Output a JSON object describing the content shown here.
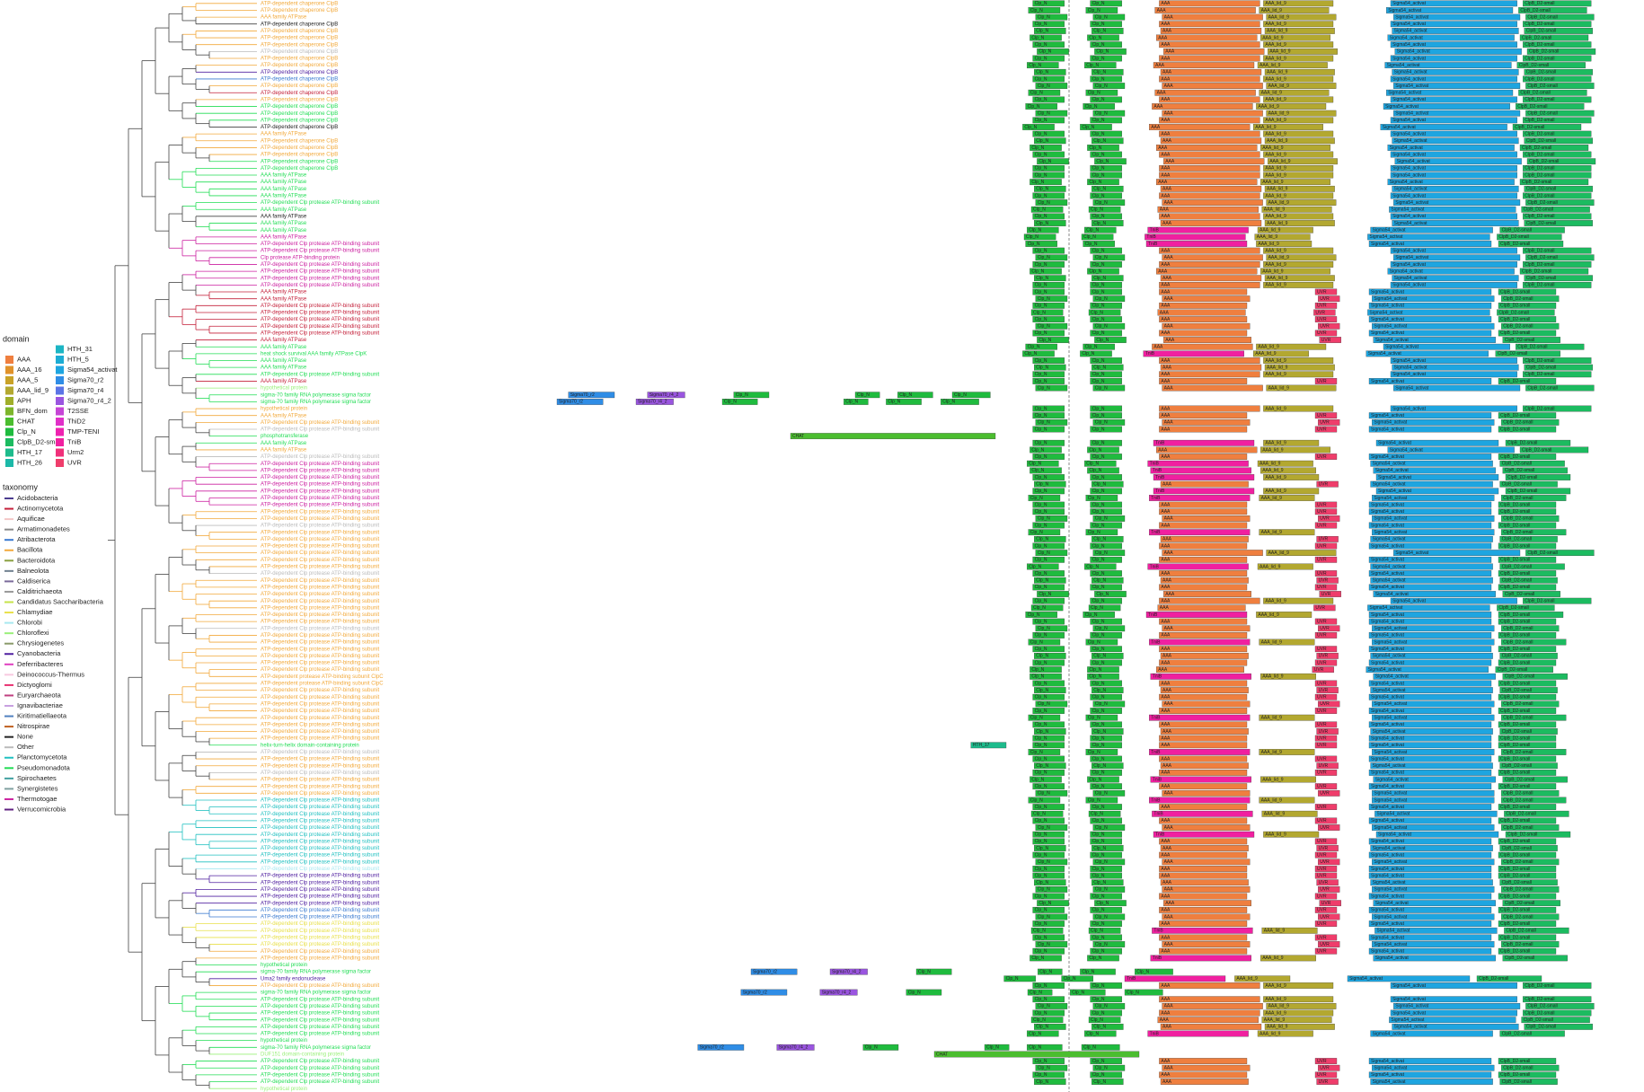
{
  "domain_legend": {
    "title": "domain",
    "items": [
      {
        "name": "AAA",
        "color": "#ef7f3f"
      },
      {
        "name": "AAA_16",
        "color": "#e0922a"
      },
      {
        "name": "AAA_5",
        "color": "#c9a227"
      },
      {
        "name": "AAA_lid_9",
        "color": "#b3a830"
      },
      {
        "name": "APH",
        "color": "#a0ae2a"
      },
      {
        "name": "BFN_dom",
        "color": "#7db52b"
      },
      {
        "name": "CHAT",
        "color": "#4bbd2f"
      },
      {
        "name": "Clp_N",
        "color": "#1fbb3e"
      },
      {
        "name": "ClpB_D2-small",
        "color": "#1cbb60"
      },
      {
        "name": "HTH_17",
        "color": "#1dbb8c"
      },
      {
        "name": "HTH_26",
        "color": "#1cb9a8"
      },
      {
        "name": "HTH_31",
        "color": "#1cb5c4"
      },
      {
        "name": "HTH_5",
        "color": "#1cacd4"
      },
      {
        "name": "Sigma54_activat",
        "color": "#1ea5e0"
      },
      {
        "name": "Sigma70_r2",
        "color": "#2f8de6"
      },
      {
        "name": "Sigma70_r4",
        "color": "#5b74e6"
      },
      {
        "name": "Sigma70_r4_2",
        "color": "#9a55e0"
      },
      {
        "name": "T2SSE",
        "color": "#c645d6"
      },
      {
        "name": "ThiD2",
        "color": "#e030c8"
      },
      {
        "name": "TMP-TENI",
        "color": "#ee22b0"
      },
      {
        "name": "TniB",
        "color": "#f020a0"
      },
      {
        "name": "Urm2",
        "color": "#f0307a"
      },
      {
        "name": "UVR",
        "color": "#ef3d6b"
      }
    ]
  },
  "taxonomy_legend": {
    "title": "taxonomy",
    "items": [
      {
        "name": "Acidobacteria",
        "color": "#4b3b8f"
      },
      {
        "name": "Actinomycetota",
        "color": "#c4203a"
      },
      {
        "name": "Aquificae",
        "color": "#f4c6c6"
      },
      {
        "name": "Armatimonadetes",
        "color": "#8a8a8a"
      },
      {
        "name": "Atribacterota",
        "color": "#3a7ad0"
      },
      {
        "name": "Bacillota",
        "color": "#f2a93b"
      },
      {
        "name": "Bacteroidota",
        "color": "#8aa040"
      },
      {
        "name": "Balneolota",
        "color": "#708090"
      },
      {
        "name": "Caldiserica",
        "color": "#7a6a9a"
      },
      {
        "name": "Calditrichaeota",
        "color": "#999999"
      },
      {
        "name": "Candidatus Saccharibacteria",
        "color": "#c6e34a"
      },
      {
        "name": "Chlamydiae",
        "color": "#e8e04a"
      },
      {
        "name": "Chlorobi",
        "color": "#a8e8f0"
      },
      {
        "name": "Chloroflexi",
        "color": "#9af07a"
      },
      {
        "name": "Chrysiogenetes",
        "color": "#8a9a6a"
      },
      {
        "name": "Cyanobacteria",
        "color": "#5020a0"
      },
      {
        "name": "Deferribacteres",
        "color": "#e040c0"
      },
      {
        "name": "Deinococcus-Thermus",
        "color": "#f8c8e0"
      },
      {
        "name": "Dictyoglomi",
        "color": "#e83070"
      },
      {
        "name": "Euryarchaeota",
        "color": "#c04080"
      },
      {
        "name": "Ignavibacteriae",
        "color": "#c8a0e0"
      },
      {
        "name": "Kiritimatiellaeota",
        "color": "#5080c0"
      },
      {
        "name": "Nitrospirae",
        "color": "#c06020"
      },
      {
        "name": "None",
        "color": "#222222"
      },
      {
        "name": "Other",
        "color": "#bbbbbb"
      },
      {
        "name": "Planctomycetota",
        "color": "#20c0c0"
      },
      {
        "name": "Pseudomonadota",
        "color": "#22dd55"
      },
      {
        "name": "Spirochaetes",
        "color": "#40a0a0"
      },
      {
        "name": "Synergistetes",
        "color": "#80a0a0"
      },
      {
        "name": "Thermotogae",
        "color": "#cc20a0"
      },
      {
        "name": "Verrucomicrobia",
        "color": "#602080"
      }
    ]
  },
  "protein_names": [
    "ATP-dependent chaperone ClpB",
    "AAA family ATPase",
    "ATP-dependent Clp protease ATP-binding subunit",
    "Clp protease ATP-binding protein",
    "heat shock survival AAA family ATPase ClpK",
    "hypothetical protein",
    "sigma-70 family RNA polymerase sigma factor",
    "phosphotransferase",
    "ATP-dependent protease ATP-binding subunit ClpC",
    "helix-turn-helix domain-containing protein",
    "Uma2 family endonuclease",
    "DUF151 domain-containing protein"
  ],
  "architectures": [
    [
      [
        7,
        2,
        46
      ],
      [
        7,
        82,
        126
      ],
      [
        0,
        178,
        318
      ],
      [
        3,
        323,
        420
      ],
      [
        13,
        500,
        676
      ],
      [
        8,
        684,
        779
      ]
    ],
    [
      [
        7,
        2,
        46
      ],
      [
        7,
        82,
        126
      ],
      [
        20,
        170,
        310
      ],
      [
        3,
        323,
        400
      ],
      [
        13,
        480,
        650
      ],
      [
        8,
        660,
        750
      ]
    ],
    [
      [
        7,
        2,
        46
      ],
      [
        7,
        82,
        126
      ],
      [
        0,
        178,
        300
      ],
      [
        22,
        395,
        425
      ],
      [
        13,
        470,
        640
      ],
      [
        8,
        650,
        730
      ]
    ],
    [
      [
        14,
        -644,
        -580
      ],
      [
        16,
        -534,
        -482
      ],
      [
        7,
        -414,
        -365
      ],
      [
        7,
        -245,
        -211
      ],
      [
        7,
        -186,
        -137
      ],
      [
        7,
        -110,
        -57
      ]
    ],
    [
      [
        6,
        -335,
        -50
      ]
    ],
    [],
    [
      [
        9,
        -84,
        -35
      ],
      [
        7,
        2,
        46
      ],
      [
        7,
        82,
        126
      ],
      [
        0,
        178,
        300
      ],
      [
        22,
        395,
        425
      ],
      [
        13,
        470,
        640
      ],
      [
        8,
        650,
        730
      ]
    ]
  ],
  "rows": [
    [
      0,
      5,
      0,
      0
    ],
    [
      0,
      5,
      0,
      -6
    ],
    [
      1,
      5,
      0,
      4
    ],
    [
      0,
      23,
      0,
      0
    ],
    [
      0,
      5,
      0,
      2
    ],
    [
      0,
      5,
      0,
      -4
    ],
    [
      0,
      5,
      0,
      0
    ],
    [
      0,
      24,
      0,
      6
    ],
    [
      0,
      5,
      0,
      0
    ],
    [
      0,
      5,
      0,
      -8
    ],
    [
      0,
      15,
      0,
      2
    ],
    [
      0,
      4,
      0,
      0
    ],
    [
      0,
      5,
      0,
      4
    ],
    [
      0,
      1,
      0,
      -6
    ],
    [
      0,
      5,
      0,
      0
    ],
    [
      0,
      26,
      0,
      -10
    ],
    [
      0,
      26,
      0,
      4
    ],
    [
      0,
      26,
      0,
      0
    ],
    [
      0,
      23,
      0,
      -14
    ],
    [
      1,
      5,
      0,
      0
    ],
    [
      0,
      5,
      0,
      2
    ],
    [
      0,
      5,
      0,
      -4
    ],
    [
      0,
      5,
      0,
      0
    ],
    [
      0,
      26,
      0,
      6
    ],
    [
      0,
      26,
      0,
      0
    ],
    [
      1,
      26,
      0,
      0
    ],
    [
      1,
      26,
      0,
      -4
    ],
    [
      1,
      26,
      0,
      2
    ],
    [
      1,
      26,
      0,
      0
    ],
    [
      2,
      26,
      0,
      4
    ],
    [
      1,
      26,
      0,
      -2
    ],
    [
      1,
      23,
      0,
      0
    ],
    [
      1,
      26,
      0,
      2
    ],
    [
      1,
      26,
      1,
      -8
    ],
    [
      1,
      29,
      1,
      -12
    ],
    [
      2,
      29,
      1,
      -10
    ],
    [
      2,
      29,
      0,
      0
    ],
    [
      3,
      29,
      0,
      4
    ],
    [
      2,
      29,
      0,
      0
    ],
    [
      2,
      29,
      0,
      -4
    ],
    [
      2,
      29,
      0,
      2
    ],
    [
      2,
      29,
      0,
      0
    ],
    [
      1,
      1,
      2,
      0
    ],
    [
      1,
      1,
      2,
      4
    ],
    [
      2,
      1,
      2,
      0
    ],
    [
      2,
      1,
      2,
      -2
    ],
    [
      2,
      1,
      2,
      0
    ],
    [
      2,
      1,
      2,
      4
    ],
    [
      2,
      1,
      2,
      0
    ],
    [
      1,
      1,
      2,
      6
    ],
    [
      1,
      26,
      0,
      -10
    ],
    [
      4,
      26,
      1,
      -14
    ],
    [
      1,
      26,
      0,
      0
    ],
    [
      1,
      26,
      0,
      2
    ],
    [
      2,
      26,
      0,
      0
    ],
    [
      1,
      1,
      2,
      0
    ],
    [
      5,
      13,
      0,
      4
    ],
    [
      6,
      26,
      3,
      0
    ],
    [
      6,
      26,
      3,
      -16
    ],
    [
      5,
      5,
      0,
      0
    ],
    [
      1,
      5,
      2,
      0
    ],
    [
      2,
      5,
      2,
      4
    ],
    [
      2,
      24,
      2,
      0
    ],
    [
      7,
      26,
      4,
      0
    ],
    [
      1,
      26,
      1,
      0
    ],
    [
      1,
      5,
      0,
      -4
    ],
    [
      2,
      24,
      2,
      0
    ],
    [
      2,
      29,
      1,
      -8
    ],
    [
      2,
      29,
      1,
      -4
    ],
    [
      2,
      29,
      1,
      0
    ],
    [
      2,
      29,
      2,
      2
    ],
    [
      2,
      29,
      1,
      0
    ],
    [
      2,
      29,
      1,
      -6
    ],
    [
      2,
      29,
      2,
      0
    ],
    [
      2,
      5,
      2,
      0
    ],
    [
      2,
      5,
      2,
      4
    ],
    [
      2,
      24,
      2,
      0
    ],
    [
      2,
      5,
      1,
      -6
    ],
    [
      2,
      5,
      2,
      2
    ],
    [
      2,
      5,
      2,
      0
    ],
    [
      2,
      5,
      0,
      4
    ],
    [
      2,
      5,
      2,
      0
    ],
    [
      2,
      5,
      1,
      -8
    ],
    [
      2,
      24,
      2,
      0
    ],
    [
      2,
      5,
      2,
      2
    ],
    [
      2,
      5,
      2,
      0
    ],
    [
      2,
      5,
      2,
      6
    ],
    [
      2,
      5,
      0,
      0
    ],
    [
      2,
      5,
      2,
      -2
    ],
    [
      2,
      5,
      1,
      -10
    ],
    [
      2,
      5,
      2,
      0
    ],
    [
      2,
      24,
      2,
      4
    ],
    [
      2,
      5,
      2,
      0
    ],
    [
      2,
      5,
      1,
      -6
    ],
    [
      2,
      5,
      2,
      0
    ],
    [
      2,
      5,
      2,
      2
    ],
    [
      2,
      5,
      2,
      0
    ],
    [
      2,
      5,
      2,
      -4
    ],
    [
      8,
      5,
      1,
      -4
    ],
    [
      8,
      5,
      2,
      0
    ],
    [
      2,
      5,
      2,
      2
    ],
    [
      2,
      5,
      2,
      0
    ],
    [
      2,
      5,
      2,
      4
    ],
    [
      2,
      5,
      2,
      0
    ],
    [
      2,
      5,
      1,
      -6
    ],
    [
      2,
      5,
      2,
      0
    ],
    [
      2,
      5,
      2,
      2
    ],
    [
      2,
      5,
      2,
      0
    ],
    [
      9,
      26,
      6,
      0
    ],
    [
      2,
      24,
      1,
      -6
    ],
    [
      2,
      5,
      2,
      0
    ],
    [
      2,
      5,
      2,
      2
    ],
    [
      2,
      24,
      2,
      0
    ],
    [
      2,
      5,
      1,
      -4
    ],
    [
      2,
      5,
      2,
      0
    ],
    [
      2,
      5,
      2,
      4
    ],
    [
      2,
      25,
      1,
      -6
    ],
    [
      2,
      25,
      2,
      0
    ],
    [
      2,
      25,
      1,
      -2
    ],
    [
      2,
      25,
      2,
      0
    ],
    [
      2,
      25,
      2,
      4
    ],
    [
      2,
      25,
      1,
      0
    ],
    [
      2,
      25,
      2,
      0
    ],
    [
      2,
      25,
      2,
      2
    ],
    [
      2,
      25,
      2,
      0
    ],
    [
      2,
      25,
      2,
      4
    ],
    [
      2,
      12,
      2,
      0
    ],
    [
      2,
      15,
      2,
      0
    ],
    [
      2,
      15,
      2,
      2
    ],
    [
      2,
      15,
      2,
      4
    ],
    [
      2,
      15,
      2,
      0
    ],
    [
      2,
      15,
      2,
      6
    ],
    [
      2,
      4,
      2,
      0
    ],
    [
      2,
      4,
      2,
      4
    ],
    [
      2,
      11,
      2,
      0
    ],
    [
      2,
      11,
      1,
      -2
    ],
    [
      2,
      11,
      2,
      0
    ],
    [
      2,
      11,
      2,
      4
    ],
    [
      2,
      5,
      2,
      0
    ],
    [
      2,
      5,
      1,
      -4
    ],
    [
      5,
      26,
      5,
      0
    ],
    [
      6,
      26,
      3,
      254
    ],
    [
      10,
      15,
      1,
      -40
    ],
    [
      2,
      5,
      0,
      0
    ],
    [
      6,
      26,
      3,
      240
    ],
    [
      2,
      26,
      0,
      0
    ],
    [
      2,
      26,
      0,
      4
    ],
    [
      2,
      26,
      0,
      0
    ],
    [
      2,
      26,
      0,
      -2
    ],
    [
      2,
      26,
      0,
      2
    ],
    [
      2,
      26,
      1,
      -8
    ],
    [
      5,
      26,
      5,
      0
    ],
    [
      6,
      26,
      3,
      180
    ],
    [
      11,
      13,
      4,
      200
    ],
    [
      2,
      26,
      2,
      0
    ],
    [
      2,
      26,
      2,
      4
    ],
    [
      2,
      26,
      2,
      0
    ],
    [
      2,
      26,
      2,
      2
    ],
    [
      5,
      13,
      5,
      0
    ]
  ]
}
